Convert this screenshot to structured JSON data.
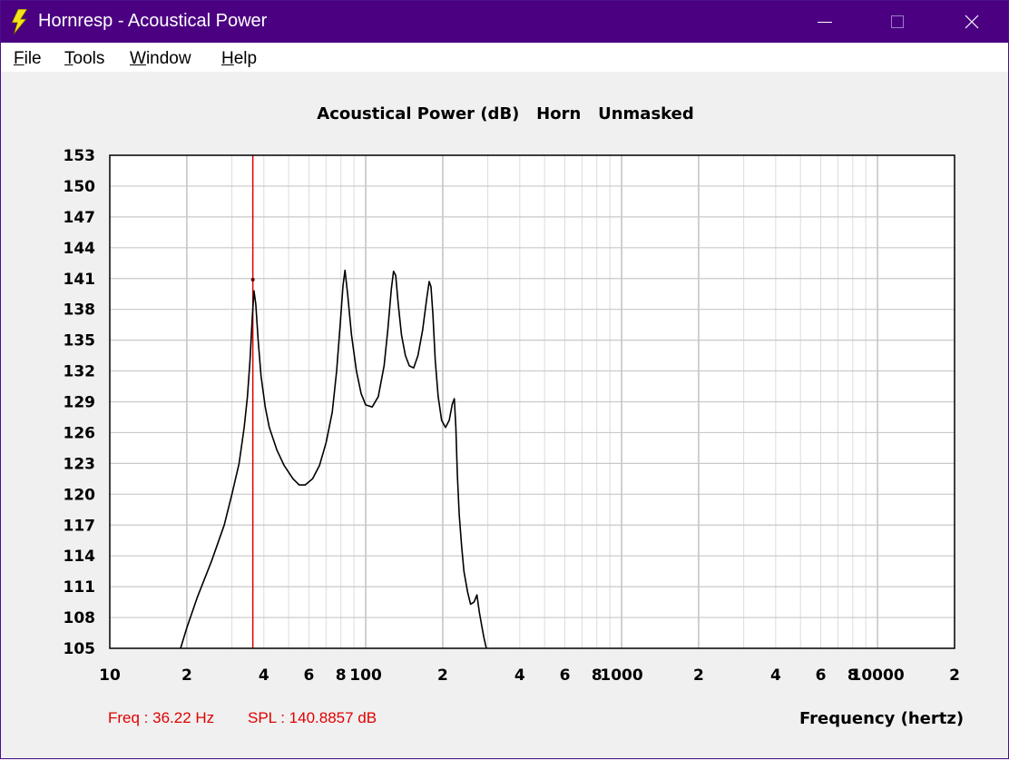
{
  "window": {
    "title": "Hornresp - Acoustical Power"
  },
  "menu": [
    {
      "accel": "F",
      "rest": "ile"
    },
    {
      "accel": "T",
      "rest": "ools"
    },
    {
      "accel": "W",
      "rest": "indow"
    },
    {
      "accel": "H",
      "rest": "elp"
    }
  ],
  "status": {
    "freq": "Freq : 36.22 Hz",
    "spl": "SPL : 140.8857 dB"
  },
  "colors": {
    "titlebar": "#4b0082",
    "trace": "#000000",
    "cursor": "#e00000",
    "grid": "#c8c8c8"
  },
  "chart_data": {
    "type": "line",
    "title": "Acoustical Power (dB)   Horn   Unmasked",
    "xlabel": "Frequency (hertz)",
    "ylabel": "",
    "xscale": "log",
    "xlim": [
      10,
      20000
    ],
    "ylim": [
      105,
      153
    ],
    "grid": true,
    "yticks": [
      153,
      150,
      147,
      144,
      141,
      138,
      135,
      132,
      129,
      126,
      123,
      120,
      117,
      114,
      111,
      108,
      105
    ],
    "xticks": [
      {
        "v": 10,
        "label": "10"
      },
      {
        "v": 20,
        "label": "2"
      },
      {
        "v": 40,
        "label": "4"
      },
      {
        "v": 60,
        "label": "6"
      },
      {
        "v": 80,
        "label": "8"
      },
      {
        "v": 100,
        "label": "100"
      },
      {
        "v": 200,
        "label": "2"
      },
      {
        "v": 400,
        "label": "4"
      },
      {
        "v": 600,
        "label": "6"
      },
      {
        "v": 800,
        "label": "8"
      },
      {
        "v": 1000,
        "label": "1000"
      },
      {
        "v": 2000,
        "label": "2"
      },
      {
        "v": 4000,
        "label": "4"
      },
      {
        "v": 6000,
        "label": "6"
      },
      {
        "v": 8000,
        "label": "8"
      },
      {
        "v": 10000,
        "label": "10000"
      },
      {
        "v": 20000,
        "label": "2"
      }
    ],
    "cursor": {
      "x": 36.22,
      "y": 140.8857
    },
    "series": [
      {
        "x": [
          18.9,
          20,
          22,
          25,
          28,
          30,
          32,
          33.5,
          34.5,
          35.3,
          36,
          36.6,
          37.2,
          38,
          39,
          40.5,
          42,
          45,
          48,
          52,
          55,
          58,
          62,
          66,
          70,
          74,
          77,
          79.5,
          81.5,
          83,
          85,
          88,
          92,
          96,
          100,
          106,
          112,
          118,
          122,
          126,
          128.5,
          131,
          134,
          138,
          143,
          148,
          154,
          160,
          167,
          173,
          177,
          180,
          183,
          187,
          192,
          198,
          205,
          212,
          218,
          222,
          225,
          228,
          232,
          237,
          242,
          250,
          257,
          265,
          272,
          278,
          285,
          290,
          296
        ],
        "y": [
          105,
          107,
          110,
          113.5,
          117,
          120,
          123,
          126.5,
          129.5,
          133,
          137,
          139.8,
          138.5,
          135,
          131.5,
          128.5,
          126.5,
          124.3,
          122.8,
          121.5,
          120.9,
          120.9,
          121.5,
          122.8,
          125,
          128,
          132,
          136.5,
          140.3,
          141.8,
          139.5,
          135.5,
          132,
          129.8,
          128.7,
          128.5,
          129.5,
          132.5,
          136,
          140,
          141.7,
          141.3,
          138.5,
          135.5,
          133.5,
          132.5,
          132.3,
          133.5,
          136,
          139,
          140.7,
          140.2,
          137.5,
          133,
          129.5,
          127.2,
          126.5,
          127.2,
          128.8,
          129.3,
          126.5,
          122,
          118,
          115,
          112.5,
          110.5,
          109.3,
          109.5,
          110.2,
          108.5,
          107,
          106,
          105
        ]
      }
    ]
  }
}
